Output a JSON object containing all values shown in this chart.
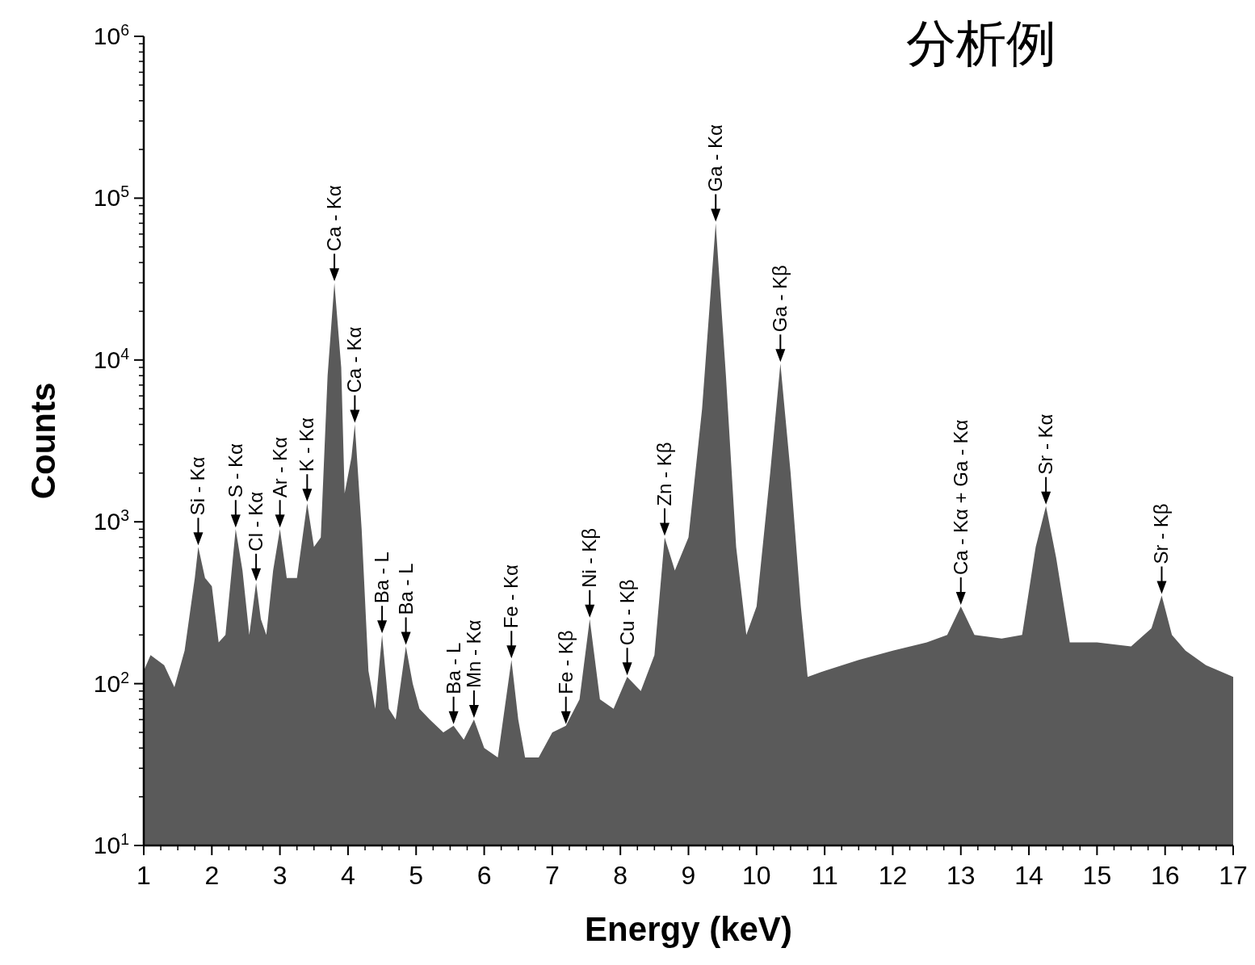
{
  "chart_data": {
    "type": "area",
    "title": "分析例",
    "xlabel": "Energy (keV)",
    "ylabel": "Counts",
    "log": "y",
    "grid": false,
    "xlim": [
      1,
      17
    ],
    "xticks": [
      1,
      2,
      3,
      4,
      5,
      6,
      7,
      8,
      9,
      10,
      11,
      12,
      13,
      14,
      15,
      16,
      17
    ],
    "ylim": [
      10,
      1000000
    ],
    "yticks": [
      {
        "value": 10,
        "label": "10$^{1}$"
      },
      {
        "value": 100,
        "label": "10$^{2}$"
      },
      {
        "value": 1000,
        "label": "10$^{3}$"
      },
      {
        "value": 10000,
        "label": "10$^{4}$"
      },
      {
        "value": 100000,
        "label": "10$^{5}$"
      },
      {
        "value": 1000000,
        "label": "10$^{6}$"
      }
    ],
    "series": [
      {
        "color": "#5a5a5a",
        "x": [
          1.0,
          1.1,
          1.3,
          1.45,
          1.6,
          1.75,
          1.8,
          1.9,
          2.0,
          2.1,
          2.2,
          2.35,
          2.45,
          2.55,
          2.65,
          2.72,
          2.8,
          2.9,
          3.0,
          3.1,
          3.25,
          3.4,
          3.5,
          3.6,
          3.7,
          3.8,
          3.9,
          3.95,
          4.05,
          4.1,
          4.2,
          4.3,
          4.4,
          4.5,
          4.6,
          4.7,
          4.85,
          4.95,
          5.05,
          5.2,
          5.4,
          5.55,
          5.7,
          5.85,
          6.0,
          6.2,
          6.4,
          6.5,
          6.6,
          6.8,
          7.0,
          7.2,
          7.4,
          7.55,
          7.7,
          7.9,
          8.1,
          8.3,
          8.5,
          8.65,
          8.8,
          9.0,
          9.2,
          9.4,
          9.55,
          9.7,
          9.85,
          10.0,
          10.2,
          10.35,
          10.5,
          10.65,
          10.75,
          11.0,
          11.5,
          12.0,
          12.5,
          12.8,
          13.0,
          13.2,
          13.6,
          13.9,
          14.1,
          14.25,
          14.4,
          14.6,
          15.0,
          15.5,
          15.8,
          15.95,
          16.1,
          16.3,
          16.6,
          17.0
        ],
        "values": [
          120,
          150,
          130,
          95,
          160,
          450,
          700,
          450,
          400,
          180,
          200,
          900,
          500,
          200,
          420,
          250,
          200,
          500,
          900,
          450,
          450,
          1300,
          700,
          800,
          8000,
          30000,
          9000,
          1500,
          2500,
          4000,
          900,
          120,
          70,
          200,
          70,
          60,
          170,
          100,
          70,
          60,
          50,
          55,
          45,
          60,
          40,
          35,
          140,
          60,
          35,
          35,
          50,
          55,
          80,
          250,
          80,
          70,
          110,
          90,
          150,
          800,
          500,
          800,
          5000,
          70000,
          8000,
          700,
          200,
          300,
          2000,
          9500,
          2000,
          300,
          110,
          120,
          140,
          160,
          180,
          200,
          300,
          200,
          190,
          200,
          700,
          1250,
          600,
          180,
          180,
          170,
          220,
          350,
          200,
          160,
          130,
          110
        ]
      }
    ],
    "annotations": [
      {
        "text": "Si - Kα",
        "x": 1.8,
        "y": 700
      },
      {
        "text": "S - Kα",
        "x": 2.35,
        "y": 900
      },
      {
        "text": "Cl - Kα",
        "x": 2.65,
        "y": 420
      },
      {
        "text": "Ar - Kα",
        "x": 3.0,
        "y": 900
      },
      {
        "text": "K - Kα",
        "x": 3.4,
        "y": 1300
      },
      {
        "text": "Ca - Kα",
        "x": 3.8,
        "y": 30000
      },
      {
        "text": "Ca - Kα",
        "x": 4.1,
        "y": 4000
      },
      {
        "text": "Ba - L",
        "x": 4.5,
        "y": 200
      },
      {
        "text": "Ba - L",
        "x": 4.85,
        "y": 170
      },
      {
        "text": "Ba - L",
        "x": 5.55,
        "y": 55
      },
      {
        "text": "Mn - Kα",
        "x": 5.85,
        "y": 60
      },
      {
        "text": "Fe - Kα",
        "x": 6.4,
        "y": 140
      },
      {
        "text": "Fe - Kβ",
        "x": 7.2,
        "y": 55
      },
      {
        "text": "Ni - Kβ",
        "x": 7.55,
        "y": 250
      },
      {
        "text": "Cu - Kβ",
        "x": 8.1,
        "y": 110
      },
      {
        "text": "Zn - Kβ",
        "x": 8.65,
        "y": 800
      },
      {
        "text": "Ga - Kα",
        "x": 9.4,
        "y": 70000
      },
      {
        "text": "Ga - Kβ",
        "x": 10.35,
        "y": 9500
      },
      {
        "text": "Ca - Kα + Ga - Kα",
        "x": 13.0,
        "y": 300
      },
      {
        "text": "Sr - Kα",
        "x": 14.25,
        "y": 1250
      },
      {
        "text": "Sr - Kβ",
        "x": 15.95,
        "y": 350
      }
    ]
  }
}
